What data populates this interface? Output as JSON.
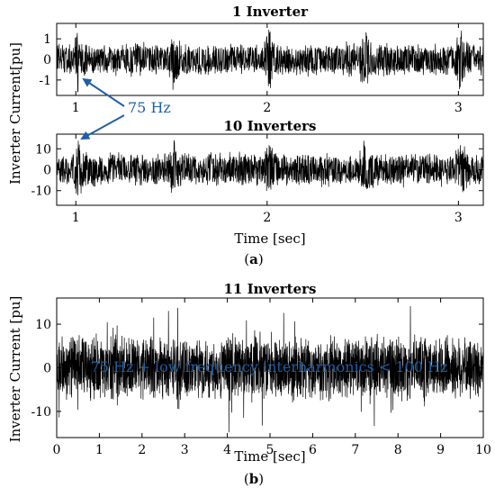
{
  "colors": {
    "signal": "#000000",
    "annotation": "#1f5fa6",
    "axis": "#000000",
    "background": "#ffffff"
  },
  "shared_ylabel": "Inverter Current[pu]",
  "panel_a": {
    "label_prefix": "(",
    "label_letter": "a",
    "label_suffix": ")",
    "xlabel": "Time [sec]",
    "annotation": "75 Hz"
  },
  "panel_b": {
    "label_prefix": "(",
    "label_letter": "b",
    "label_suffix": ")",
    "annotation": "75 Hz + low frequency interharmonics < 100 Hz"
  },
  "chart_data": [
    {
      "type": "line",
      "title": "1 Inverter",
      "xlabel": "",
      "ylabel": "",
      "xlim": [
        0.9,
        3.13
      ],
      "ylim": [
        -1.75,
        1.75
      ],
      "xticks": [
        1,
        2,
        3
      ],
      "yticks": [
        1,
        0,
        -1
      ],
      "grid": false,
      "series": [
        {
          "description": "inverter current oscillating between about -1.5 and 1.5 pu with transient bursts near t = 1.0, 1.5, 2.0, 2.5, 3.0 s"
        }
      ]
    },
    {
      "type": "line",
      "title": "10 Inverters",
      "xlabel": "Time [sec]",
      "ylabel": "",
      "xlim": [
        0.9,
        3.13
      ],
      "ylim": [
        -17,
        17
      ],
      "xticks": [
        1,
        2,
        3
      ],
      "yticks": [
        10,
        0,
        -10
      ],
      "grid": false,
      "series": [
        {
          "description": "aggregated current oscillating between about -15 and 15 pu with transient bursts near t = 1.0, 1.5, 2.0, 2.5, 3.0 s"
        }
      ]
    },
    {
      "type": "line",
      "title": "11 Inverters",
      "xlabel": "Time [sec]",
      "ylabel": "Inverter Current [pu]",
      "xlim": [
        0,
        10
      ],
      "ylim": [
        -16,
        16
      ],
      "xticks": [
        0,
        1,
        2,
        3,
        4,
        5,
        6,
        7,
        8,
        9,
        10
      ],
      "yticks": [
        10,
        0,
        -10
      ],
      "grid": false,
      "series": [
        {
          "description": "noisy current with envelope about ±8 pu and spikes up to about ±15 pu over 0–10 s"
        }
      ]
    }
  ]
}
